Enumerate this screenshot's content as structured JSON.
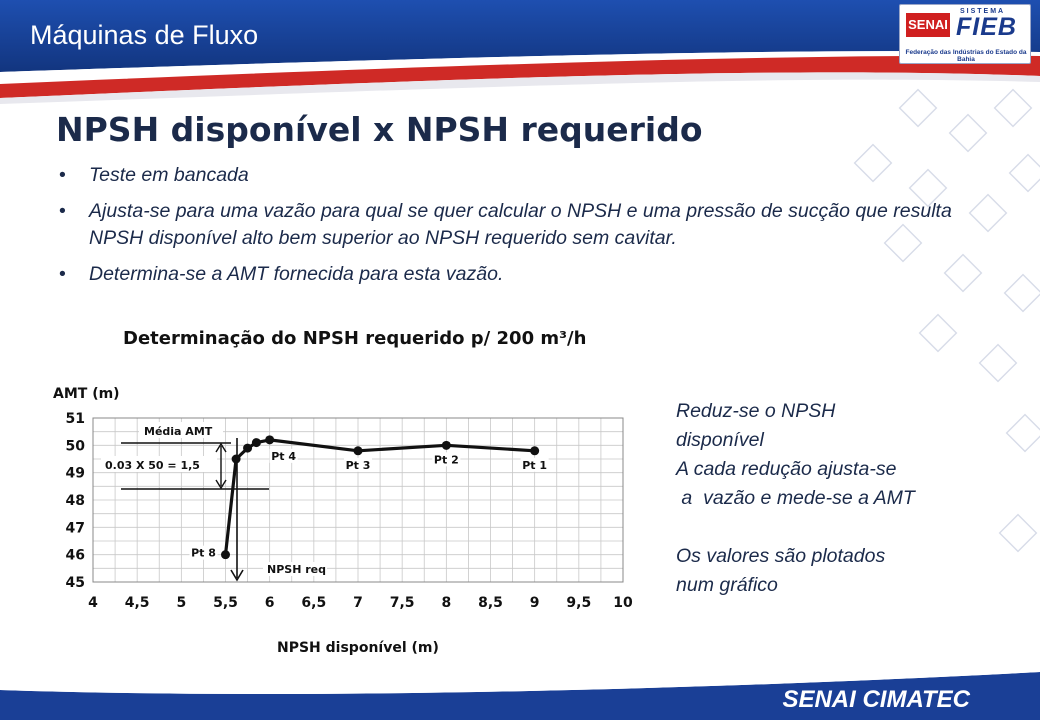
{
  "header": {
    "title": "Máquinas de Fluxo"
  },
  "logo": {
    "senai": "SENAI",
    "sistema": "SISTEMA",
    "fieb": "FIEB",
    "subtitle": "Federação das Indústrias do Estado da Bahia"
  },
  "slide": {
    "title": "NPSH disponível x NPSH requerido",
    "bullets": [
      "Teste em bancada",
      "Ajusta-se para uma vazão para qual se quer calcular o NPSH e uma pressão de sucção que resulta NPSH disponível alto  bem superior ao NPSH requerido sem cavitar.",
      "Determina-se a AMT fornecida para esta vazão."
    ],
    "side_lines": [
      "Reduz-se o NPSH",
      "disponível",
      "A cada redução ajusta-se",
      " a  vazão e mede-se a AMT",
      "",
      "Os valores são plotados",
      "num gráfico"
    ]
  },
  "footer": {
    "brand": "SENAI CIMATEC"
  },
  "chart_data": {
    "type": "line",
    "title": "Determinação do NPSH requerido p/ 200 m³/h",
    "xlabel": "NPSH disponível (m)",
    "ylabel": "AMT (m)",
    "xlim": [
      4,
      10
    ],
    "ylim": [
      45,
      51
    ],
    "xticks": [
      "4",
      "4,5",
      "5",
      "5,5",
      "6",
      "6,5",
      "7",
      "7,5",
      "8",
      "8,5",
      "9",
      "9,5",
      "10"
    ],
    "yticks": [
      "45",
      "46",
      "47",
      "48",
      "49",
      "50",
      "51"
    ],
    "grid": true,
    "series": [
      {
        "points": [
          [
            5.5,
            46
          ],
          [
            5.62,
            49.5
          ],
          [
            5.75,
            49.9
          ],
          [
            5.85,
            50.1
          ],
          [
            6.0,
            50.2
          ],
          [
            7.0,
            49.8
          ],
          [
            8.0,
            50.0
          ],
          [
            9.0,
            49.8
          ]
        ]
      }
    ],
    "point_labels": [
      {
        "label": "Pt 1",
        "x": 9.0,
        "y": 49.8
      },
      {
        "label": "Pt 2",
        "x": 8.0,
        "y": 50.0
      },
      {
        "label": "Pt 3",
        "x": 7.0,
        "y": 49.8
      },
      {
        "label": "Pt 4",
        "x": 6.0,
        "y": 50.2
      },
      {
        "label": "Pt 8",
        "x": 5.5,
        "y": 46
      }
    ],
    "annotations": {
      "media": "Média AMT",
      "formula": "0.03 X 50 = 1,5",
      "npsh_req": "NPSH req"
    },
    "colors": {
      "line": "#111111",
      "grid": "#c8c8c8"
    }
  }
}
